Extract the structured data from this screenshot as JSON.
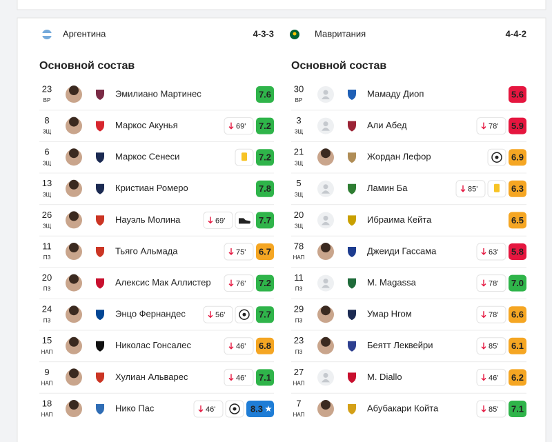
{
  "teams": [
    {
      "name": "Аргентина",
      "formation": "4-3-3",
      "section": "Основной состав",
      "players": [
        {
          "number": "23",
          "position": "ВР",
          "name": "Эмилиано Мартинес",
          "rating": "7.6",
          "photo": true,
          "club_color": "#7a2a45"
        },
        {
          "number": "8",
          "position": "ЗЩ",
          "name": "Маркос Акунья",
          "sub": "69'",
          "rating": "7.2",
          "photo": true,
          "club_color": "#d7262e"
        },
        {
          "number": "6",
          "position": "ЗЩ",
          "name": "Маркос Сенеси",
          "event": "yellow_card",
          "rating": "7.2",
          "photo": true,
          "club_color": "#1b2a52"
        },
        {
          "number": "13",
          "position": "ЗЩ",
          "name": "Кристиан Ромеро",
          "rating": "7.8",
          "photo": true,
          "club_color": "#1b2a52"
        },
        {
          "number": "26",
          "position": "ЗЩ",
          "name": "Науэль Молина",
          "sub": "69'",
          "event": "boot",
          "rating": "7.7",
          "photo": true,
          "club_color": "#cb3524"
        },
        {
          "number": "11",
          "position": "ПЗ",
          "name": "Тьяго Альмада",
          "sub": "75'",
          "rating": "6.7",
          "photo": true,
          "club_color": "#cb3524"
        },
        {
          "number": "20",
          "position": "ПЗ",
          "name": "Алексис Мак Аллистер",
          "sub": "76'",
          "rating": "7.2",
          "photo": true,
          "club_color": "#c8102e"
        },
        {
          "number": "24",
          "position": "ПЗ",
          "name": "Энцо Фернандес",
          "sub": "56'",
          "event": "goal",
          "rating": "7.7",
          "photo": true,
          "club_color": "#034694"
        },
        {
          "number": "15",
          "position": "НАП",
          "name": "Николас Гонсалес",
          "sub": "46'",
          "rating": "6.8",
          "photo": true,
          "club_color": "#111111"
        },
        {
          "number": "9",
          "position": "НАП",
          "name": "Хулиан Альварес",
          "sub": "46'",
          "rating": "7.1",
          "photo": true,
          "club_color": "#cb3524"
        },
        {
          "number": "18",
          "position": "НАП",
          "name": "Нико Пас",
          "sub": "46'",
          "event": "goal",
          "rating": "8.3",
          "best": true,
          "photo": true,
          "club_color": "#2f6db5"
        }
      ]
    },
    {
      "name": "Мавритания",
      "formation": "4-4-2",
      "section": "Основной состав",
      "players": [
        {
          "number": "30",
          "position": "ВР",
          "name": "Мамаду Диоп",
          "rating": "5.6",
          "photo": false,
          "club_color": "#1f5fb5"
        },
        {
          "number": "3",
          "position": "ЗЩ",
          "name": "Али Абед",
          "sub": "78'",
          "rating": "5.9",
          "photo": false,
          "club_color": "#9b2335"
        },
        {
          "number": "21",
          "position": "ЗЩ",
          "name": "Жордан Лефор",
          "event": "goal",
          "rating": "6.9",
          "photo": true,
          "club_color": "#b08d57"
        },
        {
          "number": "5",
          "position": "ЗЩ",
          "name": "Ламин Ба",
          "sub": "85'",
          "event": "yellow_card",
          "rating": "6.3",
          "photo": false,
          "club_color": "#2e7d32"
        },
        {
          "number": "20",
          "position": "ЗЩ",
          "name": "Ибраима Кейта",
          "rating": "6.5",
          "photo": false,
          "club_color": "#c9a000"
        },
        {
          "number": "78",
          "position": "НАП",
          "name": "Джеиди Гассама",
          "sub": "63'",
          "rating": "5.8",
          "photo": true,
          "club_color": "#1d3c8f"
        },
        {
          "number": "11",
          "position": "ПЗ",
          "name": "M. Magassa",
          "sub": "78'",
          "rating": "7.0",
          "photo": false,
          "club_color": "#1f6b3a"
        },
        {
          "number": "29",
          "position": "ПЗ",
          "name": "Умар Нгом",
          "sub": "78'",
          "rating": "6.6",
          "photo": true,
          "club_color": "#1b2a52"
        },
        {
          "number": "23",
          "position": "ПЗ",
          "name": "Беятт Леквейри",
          "sub": "85'",
          "rating": "6.1",
          "photo": true,
          "club_color": "#2d3f8f"
        },
        {
          "number": "27",
          "position": "НАП",
          "name": "M. Diallo",
          "sub": "46'",
          "rating": "6.2",
          "photo": false,
          "club_color": "#c8102e"
        },
        {
          "number": "7",
          "position": "НАП",
          "name": "Абубакари Койта",
          "sub": "85'",
          "rating": "7.1",
          "photo": true,
          "club_color": "#d4a017"
        }
      ]
    }
  ]
}
